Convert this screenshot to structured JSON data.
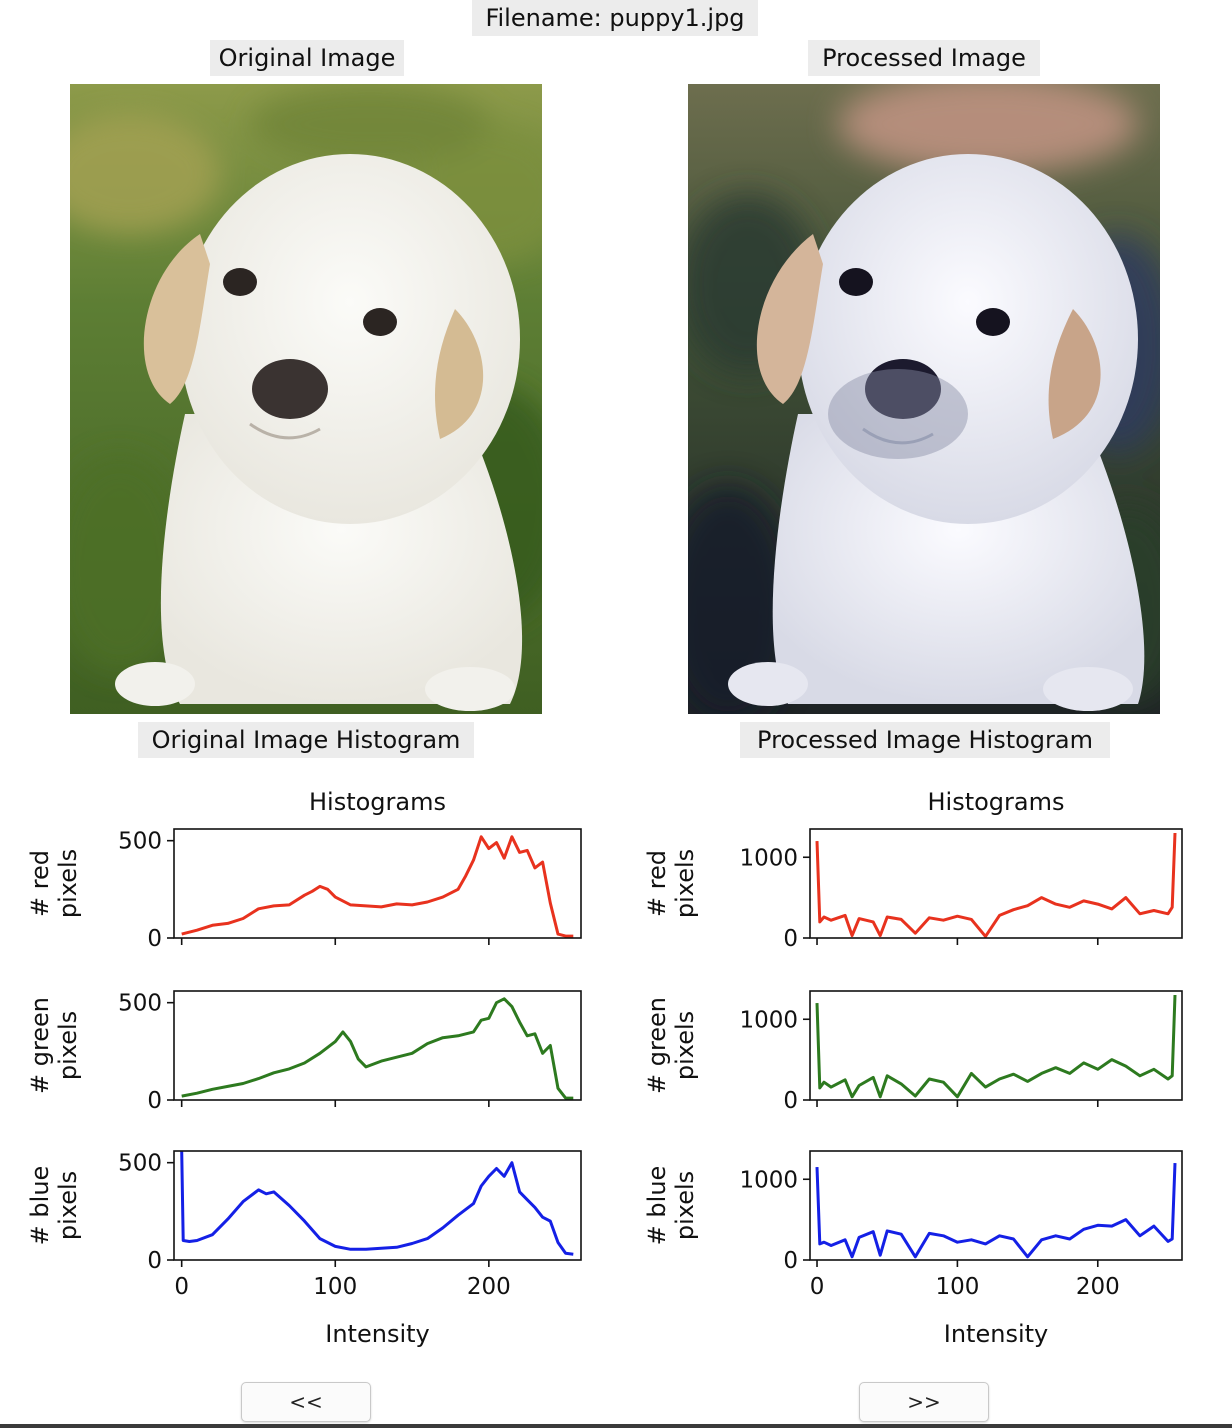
{
  "header": {
    "filename": "Filename: puppy1.jpg"
  },
  "original": {
    "title": "Original Image",
    "histogram_title": "Original Image Histogram",
    "photo_icon": "puppy-photo"
  },
  "processed": {
    "title": "Processed Image",
    "histogram_title": "Processed Image Histogram",
    "photo_icon": "puppy-photo-processed"
  },
  "nav": {
    "prev_label": "<<",
    "next_label": ">>"
  },
  "chart_data": [
    {
      "type": "line",
      "title": "Histograms",
      "xlabel": "Intensity",
      "xlim": [
        -5,
        260
      ],
      "xticks": [
        0,
        100,
        200
      ],
      "grid": false,
      "panels": [
        {
          "ylabel_line1": "# red",
          "ylabel_line2": "pixels",
          "color": "#e8321e",
          "ylim": [
            0,
            560
          ],
          "yticks": [
            0,
            500
          ],
          "x": [
            0,
            10,
            20,
            30,
            40,
            50,
            60,
            70,
            80,
            85,
            90,
            95,
            100,
            110,
            120,
            130,
            140,
            150,
            160,
            170,
            180,
            185,
            190,
            195,
            200,
            205,
            210,
            215,
            220,
            225,
            230,
            235,
            240,
            245,
            250,
            255
          ],
          "y": [
            20,
            40,
            65,
            75,
            100,
            150,
            165,
            170,
            220,
            240,
            265,
            250,
            210,
            170,
            165,
            160,
            175,
            170,
            185,
            210,
            250,
            320,
            400,
            520,
            460,
            490,
            410,
            520,
            440,
            450,
            360,
            390,
            180,
            20,
            10,
            10
          ]
        },
        {
          "ylabel_line1": "# green",
          "ylabel_line2": "pixels",
          "color": "#2d7a1f",
          "ylim": [
            0,
            560
          ],
          "yticks": [
            0,
            500
          ],
          "x": [
            0,
            10,
            20,
            30,
            40,
            50,
            60,
            70,
            80,
            90,
            100,
            105,
            110,
            115,
            120,
            130,
            140,
            150,
            160,
            170,
            180,
            190,
            195,
            200,
            205,
            210,
            215,
            220,
            225,
            230,
            235,
            240,
            245,
            250,
            255
          ],
          "y": [
            20,
            35,
            55,
            70,
            85,
            110,
            140,
            160,
            190,
            240,
            300,
            350,
            300,
            210,
            170,
            200,
            220,
            240,
            290,
            320,
            330,
            350,
            410,
            420,
            500,
            520,
            480,
            400,
            330,
            340,
            240,
            280,
            60,
            10,
            10
          ]
        },
        {
          "ylabel_line1": "# blue",
          "ylabel_line2": "pixels",
          "color": "#1420e6",
          "ylim": [
            0,
            560
          ],
          "yticks": [
            0,
            500
          ],
          "x": [
            0,
            1,
            5,
            10,
            20,
            30,
            40,
            50,
            55,
            60,
            70,
            80,
            90,
            100,
            110,
            120,
            130,
            140,
            150,
            160,
            170,
            180,
            190,
            195,
            200,
            205,
            210,
            215,
            220,
            225,
            230,
            235,
            240,
            245,
            250,
            255
          ],
          "y": [
            560,
            100,
            95,
            100,
            130,
            210,
            300,
            360,
            340,
            350,
            280,
            200,
            110,
            70,
            55,
            55,
            60,
            65,
            85,
            110,
            165,
            230,
            290,
            380,
            430,
            470,
            430,
            500,
            350,
            310,
            270,
            220,
            200,
            90,
            35,
            30
          ]
        }
      ]
    },
    {
      "type": "line",
      "title": "Histograms",
      "xlabel": "Intensity",
      "xlim": [
        -5,
        260
      ],
      "xticks": [
        0,
        100,
        200
      ],
      "grid": false,
      "panels": [
        {
          "ylabel_line1": "# red",
          "ylabel_line2": "pixels",
          "color": "#e8321e",
          "ylim": [
            0,
            1350
          ],
          "yticks": [
            0,
            1000
          ],
          "x": [
            0,
            2,
            5,
            10,
            20,
            25,
            30,
            40,
            45,
            50,
            60,
            70,
            80,
            90,
            100,
            110,
            120,
            130,
            140,
            150,
            160,
            170,
            180,
            190,
            200,
            210,
            220,
            230,
            240,
            250,
            253,
            255
          ],
          "y": [
            1200,
            200,
            260,
            220,
            280,
            30,
            240,
            200,
            30,
            260,
            230,
            60,
            250,
            220,
            270,
            230,
            20,
            280,
            350,
            400,
            500,
            420,
            380,
            460,
            420,
            360,
            500,
            300,
            340,
            300,
            380,
            1300
          ]
        },
        {
          "ylabel_line1": "# green",
          "ylabel_line2": "pixels",
          "color": "#2d7a1f",
          "ylim": [
            0,
            1350
          ],
          "yticks": [
            0,
            1000
          ],
          "x": [
            0,
            2,
            5,
            10,
            20,
            25,
            30,
            40,
            45,
            50,
            60,
            70,
            80,
            90,
            100,
            110,
            120,
            130,
            140,
            150,
            160,
            170,
            180,
            190,
            200,
            210,
            220,
            230,
            240,
            250,
            253,
            255
          ],
          "y": [
            1200,
            150,
            220,
            160,
            250,
            40,
            180,
            280,
            40,
            300,
            200,
            50,
            260,
            220,
            40,
            330,
            160,
            260,
            320,
            230,
            330,
            400,
            330,
            460,
            380,
            500,
            420,
            300,
            380,
            260,
            300,
            1300
          ]
        },
        {
          "ylabel_line1": "# blue",
          "ylabel_line2": "pixels",
          "color": "#1420e6",
          "ylim": [
            0,
            1350
          ],
          "yticks": [
            0,
            1000
          ],
          "x": [
            0,
            2,
            5,
            10,
            20,
            25,
            30,
            40,
            45,
            50,
            60,
            70,
            80,
            90,
            100,
            110,
            120,
            130,
            140,
            150,
            160,
            170,
            180,
            190,
            200,
            210,
            220,
            230,
            240,
            250,
            253,
            255
          ],
          "y": [
            1150,
            200,
            220,
            180,
            250,
            40,
            280,
            350,
            60,
            360,
            320,
            40,
            330,
            300,
            220,
            250,
            200,
            300,
            260,
            40,
            250,
            300,
            260,
            380,
            430,
            420,
            500,
            300,
            420,
            230,
            260,
            1200
          ]
        }
      ]
    }
  ]
}
